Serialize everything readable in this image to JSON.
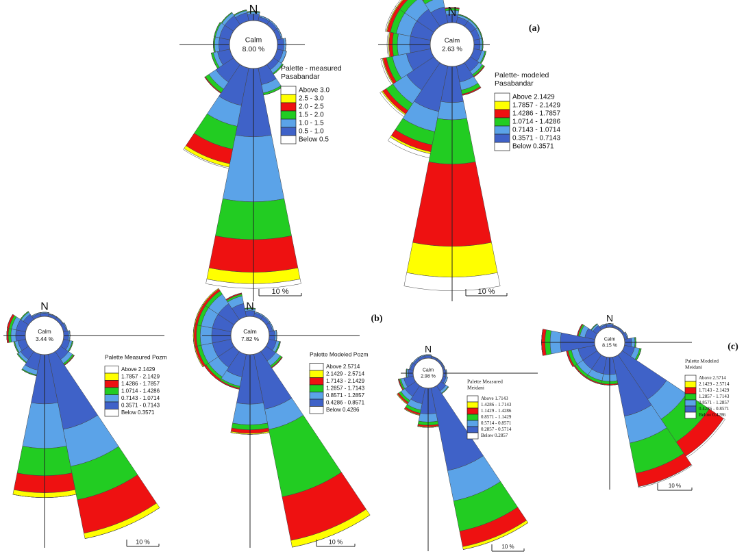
{
  "chart_data": [
    {
      "type": "windrose",
      "north_label": "N",
      "calm_label": "Calm",
      "calm": 8.0,
      "calm_value_label": "8.00 %",
      "legend_title": [
        "Palette - measured",
        "Pasabandar"
      ],
      "categories": [
        null,
        null,
        null,
        null,
        null,
        null,
        null,
        null,
        null,
        null,
        null,
        null,
        null,
        null,
        null,
        null
      ],
      "scale_bar": {
        "value": 10,
        "label": "10 %"
      },
      "series": [
        {
          "name": "Above 3.0",
          "color": "#ffffff",
          "values": [
            0,
            0,
            0,
            0,
            0,
            0,
            0,
            0,
            1.1,
            0.3,
            0,
            0,
            0,
            0,
            0,
            0
          ]
        },
        {
          "name": "2.5 - 3.0",
          "color": "#ffff00",
          "values": [
            0,
            0,
            0,
            0,
            0,
            0,
            0,
            0,
            2.7,
            0.8,
            0,
            0,
            0,
            0,
            0,
            0
          ]
        },
        {
          "name": "2.0 - 2.5",
          "color": "#ee1111",
          "values": [
            0,
            0,
            0,
            0,
            0,
            0,
            0,
            0,
            7.7,
            3.5,
            0.2,
            0,
            0,
            0,
            0,
            0
          ]
        },
        {
          "name": "1.5 - 2.0",
          "color": "#22cc22",
          "values": [
            0.2,
            0,
            0,
            0,
            0,
            0,
            0.3,
            0.5,
            8.9,
            5.5,
            1,
            0.5,
            0.3,
            0.3,
            0.2,
            0.2
          ]
        },
        {
          "name": "1.0 - 1.5",
          "color": "#5ba3e8",
          "values": [
            0.5,
            0.3,
            0.3,
            0.3,
            0.5,
            0.8,
            1,
            2,
            15.3,
            5,
            2,
            1,
            1,
            1,
            0.8,
            0.5
          ]
        },
        {
          "name": "0.5 - 1.0",
          "color": "#3f62c8",
          "values": [
            1.5,
            1,
            1,
            1,
            1.5,
            1.5,
            1.5,
            4,
            16.1,
            9,
            5,
            3,
            2.5,
            2.5,
            2.5,
            2
          ]
        },
        {
          "name": "Below 0.5",
          "color": "#ffffff"
        }
      ]
    },
    {
      "type": "windrose",
      "north_label": "N",
      "calm_label": "Calm",
      "calm": 2.63,
      "calm_value_label": "2.63 %",
      "legend_title": [
        "Palette- modeled",
        "Pasabandar"
      ],
      "annotation": "(a)",
      "categories": [
        null,
        null,
        null,
        null,
        null,
        null,
        null,
        null,
        null,
        null,
        null,
        null,
        null,
        null,
        null,
        null
      ],
      "scale_bar": {
        "value": 10,
        "label": "10 %"
      },
      "series": [
        {
          "name": "Above 2.1429",
          "color": "#ffffff",
          "values": [
            0,
            0,
            0,
            0,
            0,
            0,
            0,
            0,
            3.3,
            1,
            0.5,
            0.4,
            0.3,
            0.3,
            0.3,
            0.2
          ]
        },
        {
          "name": "1.7857 - 2.1429",
          "color": "#ffff00",
          "values": [
            0,
            0,
            0,
            0,
            0,
            0,
            0,
            0,
            7.5,
            0.5,
            0.3,
            0.2,
            0.2,
            0.2,
            0.2,
            0.1
          ]
        },
        {
          "name": "1.4286 - 1.7857",
          "color": "#ee1111",
          "values": [
            0.2,
            0,
            0,
            0,
            0,
            0,
            0.2,
            0.3,
            20,
            1.7,
            1,
            0.8,
            0.8,
            0.8,
            0.8,
            0.6
          ]
        },
        {
          "name": "1.0714 - 1.4286",
          "color": "#22cc22",
          "values": [
            0.5,
            0.2,
            0.2,
            0.2,
            0.2,
            0.3,
            0.5,
            1,
            10.8,
            3.3,
            2,
            1.5,
            1.2,
            1.5,
            1.5,
            1
          ]
        },
        {
          "name": "0.7143 - 1.0714",
          "color": "#5ba3e8",
          "values": [
            1,
            0.5,
            0.5,
            0.5,
            0.5,
            0.8,
            1,
            2,
            4.2,
            5,
            4,
            3.5,
            3,
            3.5,
            3.5,
            2.5
          ]
        },
        {
          "name": "0.3571 - 0.7143",
          "color": "#3f62c8",
          "values": [
            2,
            1.5,
            1.5,
            1.5,
            1.5,
            2,
            2.5,
            4,
            8.8,
            11.3,
            8,
            6,
            5,
            5,
            5,
            4
          ]
        },
        {
          "name": "Below 0.3571",
          "color": "#ffffff"
        }
      ]
    },
    {
      "type": "windrose",
      "north_label": "N",
      "calm_label": "Calm",
      "calm": 3.44,
      "calm_value_label": "3.44 %",
      "legend_title": [
        "Palette Measured Pozm"
      ],
      "categories": [
        null,
        null,
        null,
        null,
        null,
        null,
        null,
        null,
        null,
        null,
        null,
        null,
        null,
        null,
        null,
        null
      ],
      "scale_bar": {
        "value": 10,
        "label": "10 %"
      },
      "series": [
        {
          "name": "Above 2.1429",
          "color": "#ffffff",
          "values": [
            0,
            0,
            0,
            0,
            0,
            0,
            0,
            0,
            0,
            0,
            0,
            0,
            0,
            0,
            0,
            0
          ]
        },
        {
          "name": "1.7857 - 2.1429",
          "color": "#ffff00",
          "values": [
            0,
            0,
            0,
            0,
            0,
            0,
            0,
            1.7,
            1.5,
            0,
            0,
            0,
            0,
            0,
            0,
            0
          ]
        },
        {
          "name": "1.4286 - 1.7857",
          "color": "#ee1111",
          "values": [
            0,
            0,
            0,
            0,
            0,
            0,
            0.2,
            10.6,
            5.3,
            0,
            0,
            0,
            0.5,
            0.6,
            0,
            0
          ]
        },
        {
          "name": "1.0714 - 1.4286",
          "color": "#22cc22",
          "values": [
            0,
            0,
            0,
            0,
            0,
            0.3,
            0.5,
            10.6,
            8.5,
            0.3,
            0.3,
            0.3,
            0.8,
            0.8,
            0.3,
            0
          ]
        },
        {
          "name": "0.7143 - 1.0714",
          "color": "#5ba3e8",
          "values": [
            0.3,
            0.2,
            0.2,
            0.3,
            0.5,
            0.8,
            1.5,
            11.7,
            13.8,
            1.5,
            1,
            1,
            1.5,
            1.5,
            0.8,
            0.3
          ]
        },
        {
          "name": "0.3571 - 0.7143",
          "color": "#3f62c8",
          "values": [
            1,
            0.8,
            0.8,
            1,
            1.5,
            2,
            3,
            23.8,
            15.3,
            5,
            3,
            2.5,
            3,
            3,
            2,
            1
          ]
        },
        {
          "name": "Below 0.3571",
          "color": "#ffffff"
        }
      ]
    },
    {
      "type": "windrose",
      "north_label": "N",
      "calm_label": "Calm",
      "calm": 7.82,
      "calm_value_label": "7.82 %",
      "legend_title": [
        "Palette Modeled Pozm"
      ],
      "annotation": "(b)",
      "categories": [
        null,
        null,
        null,
        null,
        null,
        null,
        null,
        null,
        null,
        null,
        null,
        null,
        null,
        null,
        null,
        null
      ],
      "scale_bar": {
        "value": 10,
        "label": "10 %"
      },
      "series": [
        {
          "name": "Above 2.5714",
          "color": "#ffffff",
          "values": [
            0,
            0,
            0,
            0,
            0,
            0,
            0,
            0,
            0,
            0,
            0,
            0,
            0,
            0,
            0,
            0
          ]
        },
        {
          "name": "2.1429 - 2.5714",
          "color": "#ffff00",
          "values": [
            0,
            0,
            0,
            0,
            0,
            0,
            0,
            1.8,
            0.3,
            0,
            0,
            0.2,
            0.2,
            0.2,
            0.2,
            0
          ]
        },
        {
          "name": "1.7143 - 2.1429",
          "color": "#ee1111",
          "values": [
            0,
            0,
            0,
            0,
            0,
            0,
            0.2,
            11.6,
            0.9,
            0.3,
            0.5,
            0.6,
            0.6,
            0.6,
            0.6,
            0.3
          ]
        },
        {
          "name": "1.2857 - 1.7143",
          "color": "#22cc22",
          "values": [
            0.2,
            0,
            0,
            0,
            0,
            0.3,
            0.5,
            17.9,
            1.3,
            0.5,
            0.8,
            1,
            1,
            1,
            1,
            0.5
          ]
        },
        {
          "name": "0.8571 - 1.2857",
          "color": "#5ba3e8",
          "values": [
            0.5,
            0.3,
            0.3,
            0.3,
            0.5,
            0.8,
            1.5,
            5.4,
            5.4,
            2.5,
            3,
            3,
            3,
            3,
            3,
            2
          ]
        },
        {
          "name": "0.4286 - 0.8571",
          "color": "#3f62c8",
          "values": [
            1.5,
            1,
            1,
            1,
            1.5,
            2,
            3,
            14.6,
            12.9,
            6,
            5,
            5,
            5,
            5,
            5,
            3.5
          ]
        },
        {
          "name": "Below 0.4286",
          "color": "#ffffff"
        }
      ]
    },
    {
      "type": "windrose",
      "north_label": "N",
      "calm_label": "Calm",
      "calm": 2.98,
      "calm_value_label": "2.98 %",
      "legend_title": [
        "Palette Measured",
        "Meidani"
      ],
      "categories": [
        null,
        null,
        null,
        null,
        null,
        null,
        null,
        null,
        null,
        null,
        null,
        null,
        null,
        null,
        null,
        null
      ],
      "scale_bar": {
        "value": 10,
        "label": "10 %"
      },
      "series": [
        {
          "name": "Above 1.7143",
          "color": "#ffffff",
          "values": [
            0,
            0,
            0,
            0,
            0,
            0,
            0,
            0,
            0,
            0,
            0,
            0,
            0,
            0,
            0,
            0
          ]
        },
        {
          "name": "1.4286 - 1.7143",
          "color": "#ffff00",
          "values": [
            0,
            0,
            0,
            0,
            0,
            0,
            0,
            0.9,
            0.2,
            0.2,
            0.2,
            0,
            0,
            0,
            0,
            0
          ]
        },
        {
          "name": "1.1429 - 1.4286",
          "color": "#ee1111",
          "values": [
            0,
            0,
            0,
            0,
            0,
            0,
            0,
            4.9,
            0.5,
            0.5,
            0.5,
            0.3,
            0,
            0,
            0,
            0
          ]
        },
        {
          "name": "0.8571 - 1.1429",
          "color": "#22cc22",
          "values": [
            0,
            0,
            0,
            0,
            0,
            0,
            0.2,
            9.6,
            1,
            1,
            0.8,
            0.5,
            0.2,
            0,
            0,
            0
          ]
        },
        {
          "name": "0.5714 - 0.8571",
          "color": "#5ba3e8",
          "values": [
            0.3,
            0.2,
            0.2,
            0.2,
            0.3,
            0.5,
            0.8,
            9.6,
            2.5,
            2,
            1.5,
            1,
            0.5,
            0.3,
            0.3,
            0.3
          ]
        },
        {
          "name": "0.2857 - 0.5714",
          "color": "#3f62c8",
          "values": [
            0.8,
            0.5,
            0.5,
            0.5,
            0.8,
            1,
            2,
            26.2,
            8,
            5,
            4,
            3,
            1.5,
            1,
            0.8,
            0.8
          ]
        },
        {
          "name": "Below 0.2857",
          "color": "#ffffff"
        }
      ]
    },
    {
      "type": "windrose",
      "north_label": "N",
      "calm_label": "Calm",
      "calm": 8.15,
      "calm_value_label": "8.15 %",
      "legend_title": [
        "Palette Modeled",
        "Meidani"
      ],
      "annotation": "(c)",
      "categories": [
        null,
        null,
        null,
        null,
        null,
        null,
        null,
        null,
        null,
        null,
        null,
        null,
        null,
        null,
        null,
        null
      ],
      "scale_bar": {
        "value": 10,
        "label": "10 %"
      },
      "series": [
        {
          "name": "Above 2.5714",
          "color": "#ffffff",
          "values": [
            0,
            0,
            0,
            0,
            0,
            0,
            0.5,
            0.3,
            0,
            0,
            0,
            0,
            0,
            0,
            0,
            0
          ]
        },
        {
          "name": "2.1429 - 2.5714",
          "color": "#ffff00",
          "values": [
            0,
            0,
            0,
            0,
            0,
            0,
            0,
            0,
            0,
            0,
            0,
            0,
            0,
            0,
            0,
            0
          ]
        },
        {
          "name": "1.7143 - 2.1429",
          "color": "#ee1111",
          "values": [
            0,
            0,
            0,
            0,
            0,
            0,
            5,
            4,
            0.3,
            0.3,
            0.3,
            0.5,
            1,
            0.3,
            0,
            0
          ]
        },
        {
          "name": "1.2857 - 1.7143",
          "color": "#22cc22",
          "values": [
            0,
            0,
            0,
            0,
            0.3,
            0.5,
            8,
            9,
            0.8,
            0.8,
            0.8,
            1,
            1.5,
            0.5,
            0.2,
            0
          ]
        },
        {
          "name": "0.8571 - 1.2857",
          "color": "#5ba3e8",
          "values": [
            0.3,
            0.2,
            0.2,
            0.3,
            1,
            1.5,
            7,
            8,
            2,
            2,
            2,
            2,
            3,
            1.5,
            0.5,
            0.3
          ]
        },
        {
          "name": "0.4286 - 0.8571",
          "color": "#3f62c8",
          "values": [
            0.8,
            0.5,
            0.5,
            0.8,
            2,
            3,
            15.6,
            17.6,
            5,
            5,
            5,
            5,
            10,
            3,
            1.5,
            0.8
          ]
        },
        {
          "name": "Below 0.4286",
          "color": "#ffffff"
        }
      ]
    }
  ]
}
